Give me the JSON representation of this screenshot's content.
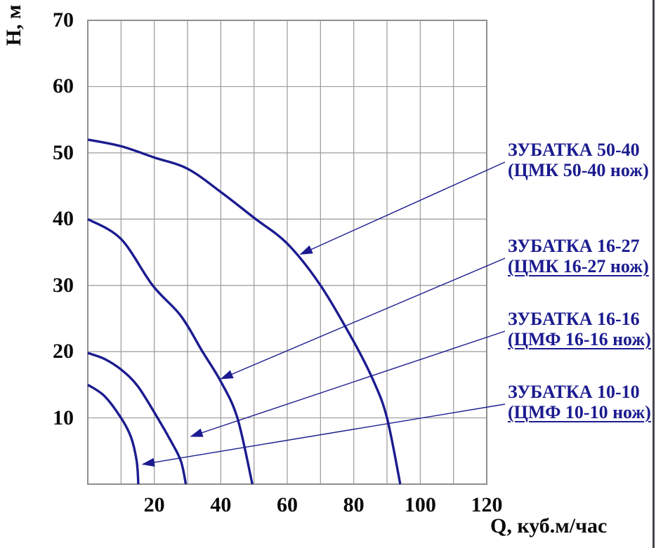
{
  "colors": {
    "curve": "#1b1b90",
    "legend_text": "#1b1b90",
    "arrow": "#1b1b90",
    "grid": "#9a9a9a",
    "frame": "#8f8f8f",
    "axis_text": "#0a0a0a",
    "page_border": "#44444e"
  },
  "chart_data": {
    "type": "line",
    "title": "",
    "xlabel": "Q, куб.м/час",
    "ylabel": "Н, м",
    "xlim": [
      0,
      120
    ],
    "ylim": [
      0,
      70
    ],
    "xticks": [
      20,
      40,
      60,
      80,
      100,
      120
    ],
    "yticks": [
      10,
      20,
      30,
      40,
      50,
      60,
      70
    ],
    "grid": "major gridlines every 10 units on both axes",
    "legend_position": "right side, two-line labels with leader arrows to curves",
    "series": [
      {
        "name": "ЗУБАТКА 50-40",
        "sub": "(ЦМК 50-40 нож)",
        "underline_sub": false,
        "arrow_target": [
          64,
          34.7
        ],
        "points": [
          [
            0,
            52
          ],
          [
            10,
            51
          ],
          [
            20,
            49.3
          ],
          [
            30,
            47.6
          ],
          [
            40,
            44.1
          ],
          [
            50,
            40.2
          ],
          [
            60,
            36.3
          ],
          [
            70,
            30
          ],
          [
            80,
            21.5
          ],
          [
            86,
            15.5
          ],
          [
            90,
            10
          ],
          [
            94,
            0
          ]
        ]
      },
      {
        "name": "ЗУБАТКА 16-27",
        "sub": "(ЦМК 16-27 нож)",
        "underline_sub": true,
        "arrow_target": [
          40.1,
          15.9
        ],
        "points": [
          [
            0,
            40
          ],
          [
            10,
            37
          ],
          [
            19.5,
            30
          ],
          [
            28,
            25.4
          ],
          [
            34.5,
            20
          ],
          [
            40,
            15.5
          ],
          [
            45,
            10
          ],
          [
            49.5,
            0
          ]
        ]
      },
      {
        "name": "ЗУБАТКА 16-16",
        "sub": "(ЦМФ 16-16 нож)",
        "underline_sub": true,
        "arrow_target": [
          31,
          7.2
        ],
        "points": [
          [
            0,
            19.8
          ],
          [
            5,
            18.9
          ],
          [
            10,
            17.3
          ],
          [
            15,
            14.8
          ],
          [
            21,
            10
          ],
          [
            25,
            6.5
          ],
          [
            28,
            3.5
          ],
          [
            29.5,
            0
          ]
        ]
      },
      {
        "name": "ЗУБАТКА 10-10",
        "sub": "(ЦМФ 10-10 нож)",
        "underline_sub": true,
        "arrow_target": [
          16.5,
          3
        ],
        "points": [
          [
            0,
            15
          ],
          [
            5,
            13.3
          ],
          [
            10,
            10
          ],
          [
            13,
            7.1
          ],
          [
            14.7,
            3.5
          ],
          [
            15.2,
            0
          ]
        ]
      }
    ]
  }
}
